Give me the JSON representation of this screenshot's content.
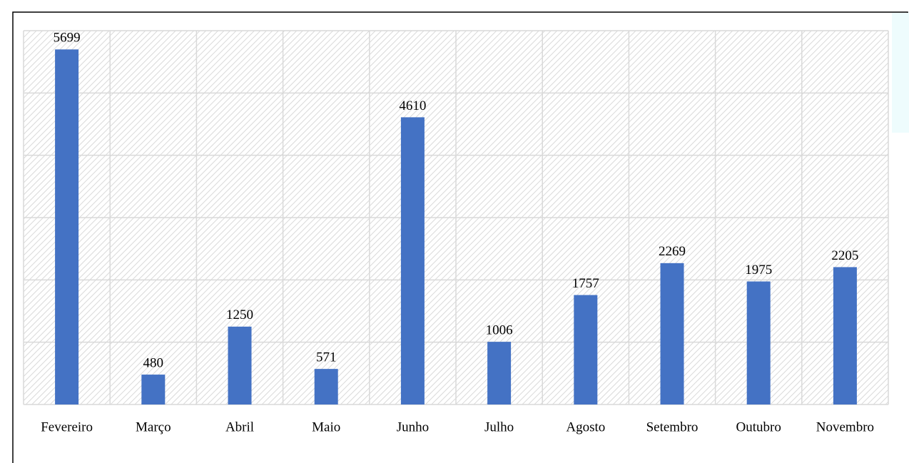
{
  "chart_data": {
    "type": "bar",
    "categories": [
      "Fevereiro",
      "Março",
      "Abril",
      "Maio",
      "Junho",
      "Julho",
      "Agosto",
      "Setembro",
      "Outubro",
      "Novembro"
    ],
    "values": [
      5699,
      480,
      1250,
      571,
      4610,
      1006,
      1757,
      2269,
      1975,
      2205
    ],
    "color": "#4472c4",
    "ylim": [
      0,
      6000
    ],
    "yticks": [
      0,
      1000,
      2000,
      3000,
      4000,
      5000,
      6000
    ],
    "grid": true
  }
}
